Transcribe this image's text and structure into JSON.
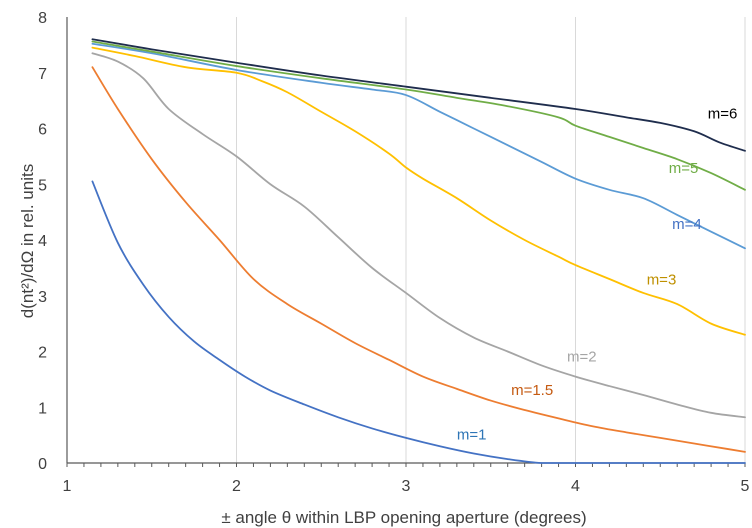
{
  "chart_data": {
    "type": "line",
    "xlabel": "± angle θ within LBP opening aperture (degrees)",
    "ylabel": "d(nt²)/dΩ in rel. units",
    "xlim": [
      1,
      5
    ],
    "ylim": [
      0,
      8
    ],
    "x_ticks": [
      "1",
      "2",
      "3",
      "4",
      "5"
    ],
    "y_ticks": [
      "0",
      "1",
      "2",
      "3",
      "4",
      "5",
      "6",
      "7",
      "8"
    ],
    "grid": "vertical",
    "series": [
      {
        "name": "m=1",
        "color": "#4472c4",
        "x": [
          1.15,
          1.3,
          1.45,
          1.6,
          1.75,
          1.9,
          2.05,
          2.2,
          2.4,
          2.6,
          2.8,
          3.0,
          3.2,
          3.4,
          3.6,
          3.8,
          4.0,
          4.5,
          5.0
        ],
        "y": [
          5.05,
          3.95,
          3.2,
          2.62,
          2.18,
          1.85,
          1.55,
          1.3,
          1.05,
          0.82,
          0.62,
          0.45,
          0.3,
          0.17,
          0.07,
          0.0,
          0.0,
          0.0,
          0.0
        ]
      },
      {
        "name": "m=1.5",
        "color": "#ed7d31",
        "x": [
          1.15,
          1.3,
          1.5,
          1.7,
          1.9,
          2.1,
          2.3,
          2.5,
          2.7,
          2.9,
          3.1,
          3.3,
          3.5,
          3.7,
          3.9,
          4.1,
          4.3,
          4.5,
          4.7,
          4.9,
          5.0
        ],
        "y": [
          7.1,
          6.35,
          5.45,
          4.68,
          4.0,
          3.3,
          2.85,
          2.5,
          2.15,
          1.85,
          1.55,
          1.33,
          1.12,
          0.95,
          0.8,
          0.66,
          0.55,
          0.45,
          0.35,
          0.25,
          0.2
        ]
      },
      {
        "name": "m=2",
        "color": "#a5a5a5",
        "x": [
          1.15,
          1.3,
          1.45,
          1.6,
          1.8,
          2.0,
          2.2,
          2.4,
          2.6,
          2.8,
          3.0,
          3.2,
          3.4,
          3.6,
          3.8,
          4.0,
          4.2,
          4.4,
          4.6,
          4.8,
          5.0
        ],
        "y": [
          7.35,
          7.2,
          6.9,
          6.35,
          5.9,
          5.5,
          5.0,
          4.6,
          4.05,
          3.5,
          3.05,
          2.6,
          2.25,
          2.0,
          1.75,
          1.55,
          1.38,
          1.22,
          1.05,
          0.9,
          0.82
        ]
      },
      {
        "name": "m=3",
        "color": "#ffc000",
        "x": [
          1.15,
          1.4,
          1.7,
          2.0,
          2.15,
          2.3,
          2.5,
          2.7,
          2.9,
          3.0,
          3.1,
          3.3,
          3.5,
          3.7,
          3.9,
          4.0,
          4.2,
          4.4,
          4.6,
          4.8,
          5.0
        ],
        "y": [
          7.45,
          7.3,
          7.1,
          7.0,
          6.85,
          6.65,
          6.3,
          5.95,
          5.55,
          5.3,
          5.1,
          4.75,
          4.35,
          4.0,
          3.7,
          3.55,
          3.3,
          3.05,
          2.85,
          2.5,
          2.3
        ]
      },
      {
        "name": "m=4",
        "color": "#5b9bd5",
        "x": [
          1.15,
          1.5,
          2.0,
          2.5,
          2.8,
          3.0,
          3.2,
          3.4,
          3.6,
          3.8,
          4.0,
          4.2,
          4.4,
          4.6,
          4.8,
          5.0
        ],
        "y": [
          7.52,
          7.35,
          7.05,
          6.82,
          6.7,
          6.6,
          6.3,
          6.0,
          5.7,
          5.4,
          5.1,
          4.9,
          4.75,
          4.45,
          4.15,
          3.85
        ]
      },
      {
        "name": "m=5",
        "color": "#70ad47",
        "x": [
          1.15,
          1.5,
          2.0,
          2.5,
          3.0,
          3.3,
          3.6,
          3.9,
          4.0,
          4.2,
          4.4,
          4.6,
          4.8,
          5.0
        ],
        "y": [
          7.56,
          7.38,
          7.12,
          6.9,
          6.7,
          6.55,
          6.4,
          6.2,
          6.05,
          5.85,
          5.65,
          5.45,
          5.2,
          4.9
        ]
      },
      {
        "name": "m=6",
        "color": "#1f2d4d",
        "x": [
          1.15,
          1.5,
          2.0,
          2.5,
          3.0,
          3.5,
          4.0,
          4.3,
          4.5,
          4.7,
          4.85,
          5.0
        ],
        "y": [
          7.6,
          7.42,
          7.18,
          6.95,
          6.75,
          6.55,
          6.35,
          6.2,
          6.1,
          5.95,
          5.75,
          5.6
        ]
      }
    ],
    "labels": [
      {
        "text": "m=6",
        "x": 4.78,
        "y": 6.18,
        "color": "#000000"
      },
      {
        "text": "m=5",
        "x": 4.55,
        "y": 5.2,
        "color": "#70ad47"
      },
      {
        "text": "m=4",
        "x": 4.57,
        "y": 4.2,
        "color": "#4472c4"
      },
      {
        "text": "m=3",
        "x": 4.42,
        "y": 3.2,
        "color": "#bf9000"
      },
      {
        "text": "m=2",
        "x": 3.95,
        "y": 1.82,
        "color": "#a5a5a5"
      },
      {
        "text": "m=1.5",
        "x": 3.62,
        "y": 1.22,
        "color": "#c55a11"
      },
      {
        "text": "m=1",
        "x": 3.3,
        "y": 0.42,
        "color": "#2e75b6"
      }
    ]
  }
}
